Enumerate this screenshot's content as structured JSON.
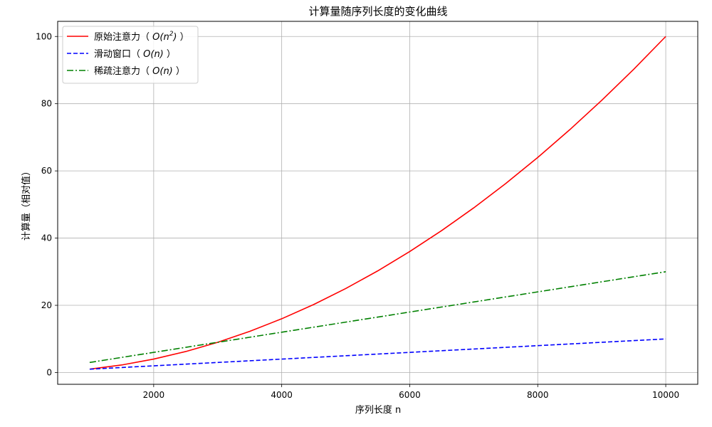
{
  "chart_data": {
    "type": "line",
    "title": "计算量随序列长度的变化曲线",
    "xlabel": "序列长度 n",
    "ylabel": "计算量（相对值）",
    "xlim": [
      500,
      10500
    ],
    "ylim": [
      -3.5,
      104.5
    ],
    "xticks": [
      2000,
      4000,
      6000,
      8000,
      10000
    ],
    "yticks": [
      0,
      20,
      40,
      60,
      80,
      100
    ],
    "grid": true,
    "legend_position": "upper-left",
    "x": [
      1000,
      1500,
      2000,
      2500,
      3000,
      3500,
      4000,
      4500,
      5000,
      5500,
      6000,
      6500,
      7000,
      7500,
      8000,
      8500,
      9000,
      9500,
      10000
    ],
    "series": [
      {
        "name": "原始注意力（ O(n²) ）",
        "name_prefix": "原始注意力（ ",
        "name_math": "O(n",
        "name_sup": "2",
        "name_math_close": ")",
        "name_suffix": " ）",
        "color": "#ff0000",
        "dash": "solid",
        "values": [
          1,
          2.25,
          4,
          6.25,
          9,
          12.25,
          16,
          20.25,
          25,
          30.25,
          36,
          42.25,
          49,
          56.25,
          64,
          72.25,
          81,
          90.25,
          100
        ]
      },
      {
        "name": "滑动窗口（ O(n) ）",
        "name_prefix": "滑动窗口（ ",
        "name_math": "O(n)",
        "name_suffix": " ）",
        "color": "#0000ff",
        "dash": "dashed",
        "values": [
          1,
          1.5,
          2,
          2.5,
          3,
          3.5,
          4,
          4.5,
          5,
          5.5,
          6,
          6.5,
          7,
          7.5,
          8,
          8.5,
          9,
          9.5,
          10
        ]
      },
      {
        "name": "稀疏注意力（ O(n) ）",
        "name_prefix": "稀疏注意力（ ",
        "name_math": "O(n)",
        "name_suffix": " ）",
        "color": "#008000",
        "dash": "dashdot",
        "values": [
          3,
          4.5,
          6,
          7.5,
          9,
          10.5,
          12,
          13.5,
          15,
          16.5,
          18,
          19.5,
          21,
          22.5,
          24,
          25.5,
          27,
          28.5,
          30
        ]
      }
    ]
  }
}
